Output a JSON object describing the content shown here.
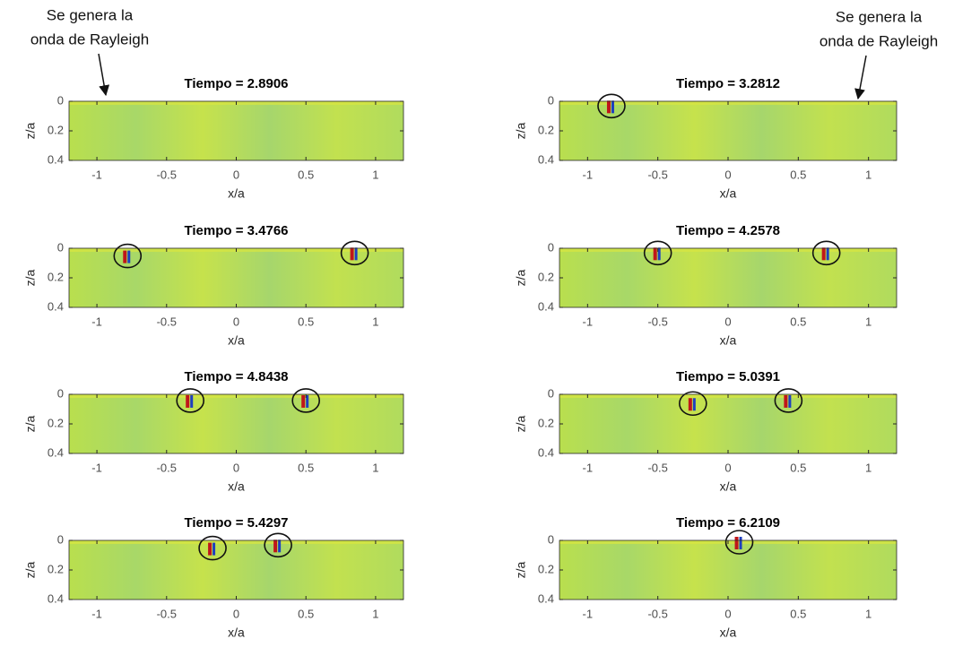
{
  "annotations": [
    {
      "lines": [
        "Se genera la",
        "onda de Rayleigh"
      ]
    },
    {
      "lines": [
        "Se genera la",
        "onda de Rayleigh"
      ]
    }
  ],
  "chart_data": [
    {
      "type": "heatmap",
      "title": "Tiempo = 2.8906",
      "xlabel": "x/a",
      "ylabel": "z/a",
      "xlim": [
        -1.2,
        1.2
      ],
      "ylim": [
        0,
        0.4
      ],
      "y_reversed": true,
      "xticks": [
        -1,
        -0.5,
        0,
        0.5,
        1
      ],
      "yticks": [
        0,
        0.2,
        0.4
      ],
      "circled": []
    },
    {
      "type": "heatmap",
      "title": "Tiempo = 3.2812",
      "xlabel": "x/a",
      "ylabel": "z/a",
      "xlim": [
        -1.2,
        1.2
      ],
      "ylim": [
        0,
        0.4
      ],
      "y_reversed": true,
      "xticks": [
        -1,
        -0.5,
        0,
        0.5,
        1
      ],
      "yticks": [
        0,
        0.2,
        0.4
      ],
      "circled": [
        {
          "x": -0.83,
          "z": 0.02
        }
      ]
    },
    {
      "type": "heatmap",
      "title": "Tiempo = 3.4766",
      "xlabel": "x/a",
      "ylabel": "z/a",
      "xlim": [
        -1.2,
        1.2
      ],
      "ylim": [
        0,
        0.4
      ],
      "y_reversed": true,
      "xticks": [
        -1,
        -0.5,
        0,
        0.5,
        1
      ],
      "yticks": [
        0,
        0.2,
        0.4
      ],
      "circled": [
        {
          "x": -0.78,
          "z": 0.04
        },
        {
          "x": 0.85,
          "z": 0.02
        }
      ]
    },
    {
      "type": "heatmap",
      "title": "Tiempo = 4.2578",
      "xlabel": "x/a",
      "ylabel": "z/a",
      "xlim": [
        -1.2,
        1.2
      ],
      "ylim": [
        0,
        0.4
      ],
      "y_reversed": true,
      "xticks": [
        -1,
        -0.5,
        0,
        0.5,
        1
      ],
      "yticks": [
        0,
        0.2,
        0.4
      ],
      "circled": [
        {
          "x": -0.5,
          "z": 0.02
        },
        {
          "x": 0.7,
          "z": 0.02
        }
      ]
    },
    {
      "type": "heatmap",
      "title": "Tiempo = 4.8438",
      "xlabel": "x/a",
      "ylabel": "z/a",
      "xlim": [
        -1.2,
        1.2
      ],
      "ylim": [
        0,
        0.4
      ],
      "y_reversed": true,
      "xticks": [
        -1,
        -0.5,
        0,
        0.5,
        1
      ],
      "yticks": [
        0,
        0.2,
        0.4
      ],
      "circled": [
        {
          "x": -0.33,
          "z": 0.03
        },
        {
          "x": 0.5,
          "z": 0.03
        }
      ]
    },
    {
      "type": "heatmap",
      "title": "Tiempo = 5.0391",
      "xlabel": "x/a",
      "ylabel": "z/a",
      "xlim": [
        -1.2,
        1.2
      ],
      "ylim": [
        0,
        0.4
      ],
      "y_reversed": true,
      "xticks": [
        -1,
        -0.5,
        0,
        0.5,
        1
      ],
      "yticks": [
        0,
        0.2,
        0.4
      ],
      "circled": [
        {
          "x": -0.25,
          "z": 0.05
        },
        {
          "x": 0.43,
          "z": 0.03
        }
      ]
    },
    {
      "type": "heatmap",
      "title": "Tiempo = 5.4297",
      "xlabel": "x/a",
      "ylabel": "z/a",
      "xlim": [
        -1.2,
        1.2
      ],
      "ylim": [
        0,
        0.4
      ],
      "y_reversed": true,
      "xticks": [
        -1,
        -0.5,
        0,
        0.5,
        1
      ],
      "yticks": [
        0,
        0.2,
        0.4
      ],
      "circled": [
        {
          "x": -0.17,
          "z": 0.04
        },
        {
          "x": 0.3,
          "z": 0.02
        }
      ]
    },
    {
      "type": "heatmap",
      "title": "Tiempo = 6.2109",
      "xlabel": "x/a",
      "ylabel": "z/a",
      "xlim": [
        -1.2,
        1.2
      ],
      "ylim": [
        0,
        0.4
      ],
      "y_reversed": true,
      "xticks": [
        -1,
        -0.5,
        0,
        0.5,
        1
      ],
      "yticks": [
        0,
        0.2,
        0.4
      ],
      "circled": [
        {
          "x": 0.08,
          "z": 0.0
        }
      ]
    }
  ]
}
